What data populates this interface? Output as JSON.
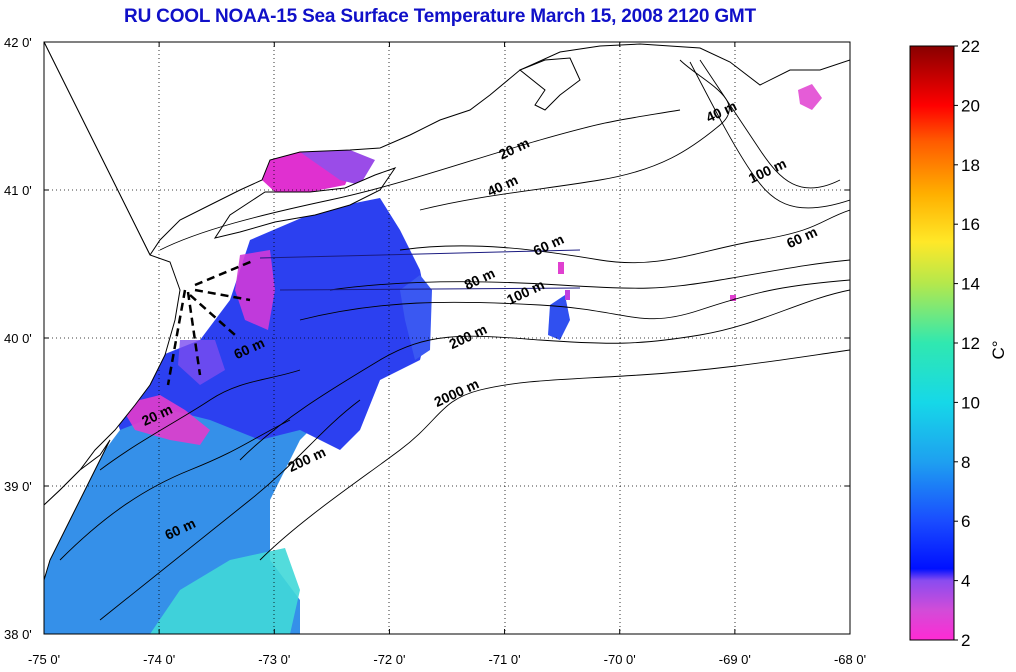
{
  "title": "RU COOL  NOAA-15 Sea Surface Temperature March 15, 2008 2120 GMT",
  "map": {
    "lon_ticks": [
      "-75 0'",
      "-74 0'",
      "-73 0'",
      "-72 0'",
      "-71 0'",
      "-70 0'",
      "-69 0'",
      "-68 0'"
    ],
    "lat_ticks": [
      "42 0'",
      "41 0'",
      "40 0'",
      "39 0'",
      "38 0'"
    ],
    "lon_range": [
      -75,
      -68
    ],
    "lat_range": [
      38,
      42
    ],
    "isobath_labels": [
      {
        "text": "20 m",
        "lon": -70.9,
        "lat": 41.25
      },
      {
        "text": "40 m",
        "lon": -69.1,
        "lat": 41.5
      },
      {
        "text": "40 m",
        "lon": -71.0,
        "lat": 41.0
      },
      {
        "text": "100 m",
        "lon": -68.7,
        "lat": 41.1
      },
      {
        "text": "60 m",
        "lon": -70.6,
        "lat": 40.6
      },
      {
        "text": "60 m",
        "lon": -68.4,
        "lat": 40.65
      },
      {
        "text": "80 m",
        "lon": -71.2,
        "lat": 40.37
      },
      {
        "text": "100 m",
        "lon": -70.8,
        "lat": 40.28
      },
      {
        "text": "200 m",
        "lon": -71.3,
        "lat": 39.98
      },
      {
        "text": "60 m",
        "lon": -73.2,
        "lat": 39.9
      },
      {
        "text": "2000 m",
        "lon": -71.4,
        "lat": 39.6
      },
      {
        "text": "200 m",
        "lon": -72.7,
        "lat": 39.15
      },
      {
        "text": "20 m",
        "lon": -74.0,
        "lat": 39.45
      },
      {
        "text": "60 m",
        "lon": -73.8,
        "lat": 38.68
      }
    ]
  },
  "colorbar": {
    "unit": "C°",
    "min": 2,
    "max": 22,
    "ticks": [
      "22",
      "20",
      "18",
      "16",
      "14",
      "12",
      "10",
      "8",
      "6",
      "4",
      "2"
    ]
  },
  "colors": {
    "title": "#1010c8",
    "land": "#ffffff",
    "ocean_missing": "#ffffff"
  }
}
